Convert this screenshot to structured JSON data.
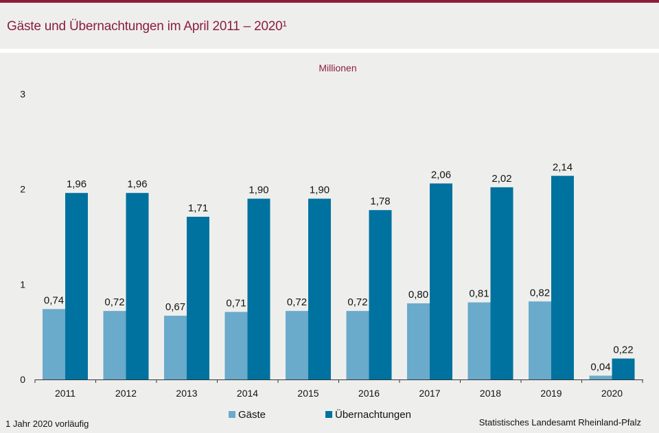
{
  "header": {
    "title": "Gäste und Übernachtungen im April 2011 – 2020¹"
  },
  "footer": {
    "footnote": "1 Jahr 2020 vorläufig",
    "source": "Statistisches Landesamt  Rheinland-Pfalz"
  },
  "colors": {
    "accent": "#8c1d3a",
    "gaeste": "#6aaacb",
    "uebernachtungen": "#00729f"
  },
  "chart_data": {
    "type": "bar",
    "unit_label": "Millionen",
    "categories": [
      "2011",
      "2012",
      "2013",
      "2014",
      "2015",
      "2016",
      "2017",
      "2018",
      "2019",
      "2020"
    ],
    "series": [
      {
        "name": "Gäste",
        "values": [
          0.74,
          0.72,
          0.67,
          0.71,
          0.72,
          0.72,
          0.8,
          0.81,
          0.82,
          0.04
        ],
        "labels": [
          "0,74",
          "0,72",
          "0,67",
          "0,71",
          "0,72",
          "0,72",
          "0,80",
          "0,81",
          "0,82",
          "0,04"
        ]
      },
      {
        "name": "Übernachtungen",
        "values": [
          1.96,
          1.96,
          1.71,
          1.9,
          1.9,
          1.78,
          2.06,
          2.02,
          2.14,
          0.22
        ],
        "labels": [
          "1,96",
          "1,96",
          "1,71",
          "1,90",
          "1,90",
          "1,78",
          "2,06",
          "2,02",
          "2,14",
          "0,22"
        ]
      }
    ],
    "ylim": [
      0,
      3
    ],
    "yticks": [
      "0",
      "1",
      "2",
      "3"
    ],
    "ytick_values": [
      0,
      1,
      2,
      3
    ],
    "grid": false,
    "legend_position": "bottom-center"
  }
}
